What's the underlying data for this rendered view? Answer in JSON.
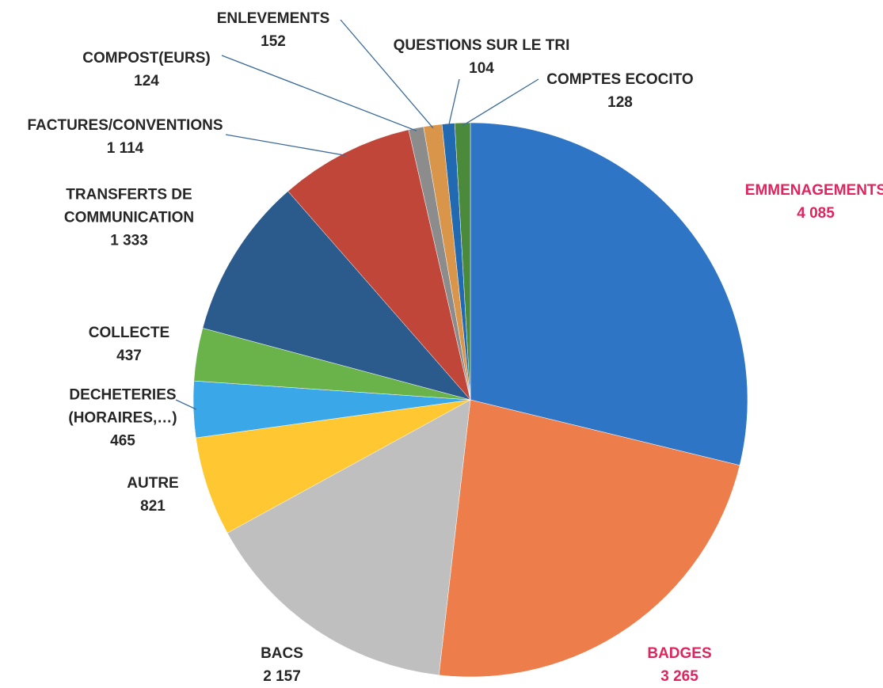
{
  "chart_data": {
    "type": "pie",
    "categories": [
      "EMMENAGEMENTS",
      "BADGES",
      "BACS",
      "AUTRE",
      "DECHETERIES (HORAIRES,…)",
      "COLLECTE",
      "TRANSFERTS DE COMMUNICATION",
      "FACTURES/CONVENTIONS",
      "COMPOST(EURS)",
      "ENLEVEMENTS",
      "QUESTIONS SUR LE TRI",
      "COMPTES ECOCITO"
    ],
    "values": [
      4085,
      3265,
      2157,
      821,
      465,
      437,
      1333,
      1114,
      124,
      152,
      104,
      128
    ],
    "value_labels": [
      "4 085",
      "3 265",
      "2 157",
      "821",
      "465",
      "437",
      "1 333",
      "1 114",
      "124",
      "152",
      "104",
      "128"
    ],
    "colors": [
      "#2E75C6",
      "#ED7D4B",
      "#BFBFBF",
      "#FFC832",
      "#3AA8E8",
      "#6AB34A",
      "#2B5A8C",
      "#C0463A",
      "#8C8C8C",
      "#D9954A",
      "#2169B0",
      "#4A8A3A"
    ],
    "label_colors": [
      "#E0245E",
      "#E0245E",
      "#262626",
      "#262626",
      "#262626",
      "#262626",
      "#262626",
      "#262626",
      "#262626",
      "#262626",
      "#262626",
      "#262626"
    ]
  }
}
